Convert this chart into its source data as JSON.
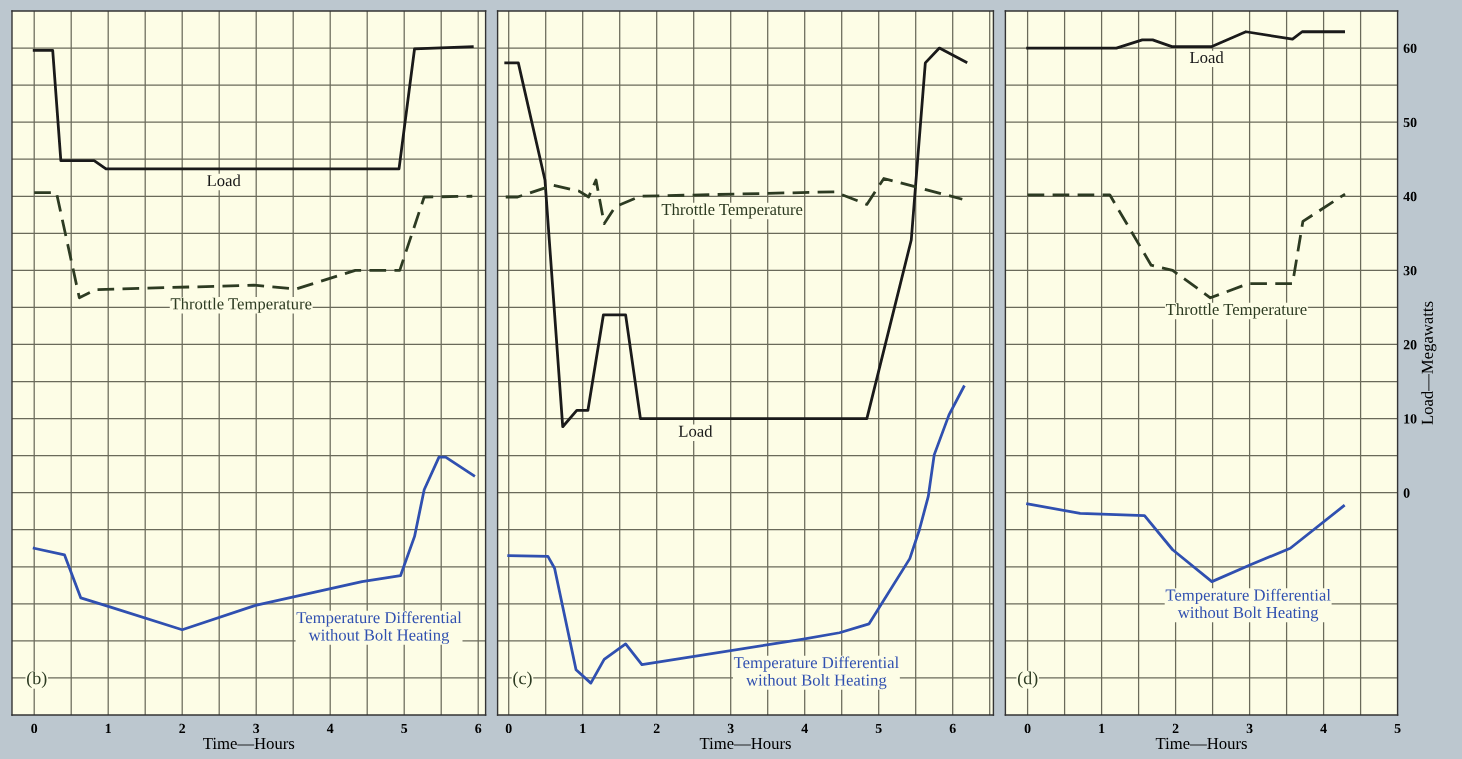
{
  "chart_data": [
    {
      "type": "line",
      "xlabel": "Time—Hours",
      "xlim": [
        -0.3,
        6.1
      ],
      "ylim": [
        -30,
        65
      ],
      "xticks": [
        0,
        {
          "value": 0.5,
          "label": null
        },
        1,
        {
          "value": 1.5,
          "label": null
        },
        2,
        {
          "value": 2.5,
          "label": null
        },
        3,
        {
          "value": 3.5,
          "label": null
        },
        4,
        {
          "value": 4.5,
          "label": null
        },
        5,
        {
          "value": 5.5,
          "label": null
        },
        6
      ],
      "yticks": [
        {
          "value": -25,
          "label": null
        },
        {
          "value": -20,
          "label": null
        },
        {
          "value": -15,
          "label": null
        },
        {
          "value": -10,
          "label": null
        },
        {
          "value": -5,
          "label": null
        },
        0,
        {
          "value": 5,
          "label": null
        },
        10,
        {
          "value": 15,
          "label": null
        },
        20,
        {
          "value": 25,
          "label": null
        },
        30,
        {
          "value": 35,
          "label": null
        },
        40,
        {
          "value": 45,
          "label": null
        },
        50,
        {
          "value": 55,
          "label": null
        },
        60
      ],
      "tick_labels": "x",
      "grid": true,
      "series": [
        {
          "name": "Load",
          "color": "#1a1a1a",
          "line_style": "solid",
          "x": [
            0,
            0.25,
            0.36,
            0.81,
            0.97,
            4.93,
            5.14,
            5.92
          ],
          "values": [
            59.7,
            59.7,
            44.8,
            44.8,
            43.7,
            43.7,
            59.9,
            60.2
          ]
        },
        {
          "name": "Throttle Temperature",
          "color": "#2d3b22",
          "line_style": "dashed",
          "x": [
            0,
            0.3,
            0.61,
            0.83,
            2.97,
            3.54,
            4.34,
            4.94,
            5.27,
            5.92
          ],
          "values": [
            40.5,
            40.5,
            26.3,
            27.4,
            28.0,
            27.5,
            30.0,
            30.0,
            39.9,
            40.0
          ]
        },
        {
          "name": "Temperature Differential\nwithout Bolt Heating",
          "color": "#3050b0",
          "line_style": "solid",
          "x": [
            0,
            0.41,
            0.63,
            0.99,
            2.0,
            2.99,
            4.43,
            4.95,
            5.14,
            5.27,
            5.47,
            5.56,
            5.94
          ],
          "values": [
            -7.5,
            -8.4,
            -14.2,
            -15.3,
            -18.5,
            -15.2,
            -12.0,
            -11.2,
            -5.9,
            0.4,
            4.8,
            4.8,
            2.3
          ]
        }
      ],
      "annotations": [
        "(b)"
      ]
    },
    {
      "type": "line",
      "xlabel": "Time—Hours",
      "xlim": [
        -0.15,
        6.55
      ],
      "ylim": [
        -30,
        65
      ],
      "xticks": [
        0,
        {
          "value": 0.5,
          "label": null
        },
        1,
        {
          "value": 1.5,
          "label": null
        },
        2,
        {
          "value": 2.5,
          "label": null
        },
        3,
        {
          "value": 3.5,
          "label": null
        },
        4,
        {
          "value": 4.5,
          "label": null
        },
        5,
        {
          "value": 5.5,
          "label": null
        },
        6,
        {
          "value": 6.5,
          "label": null
        }
      ],
      "yticks": [
        {
          "value": -25,
          "label": null
        },
        {
          "value": -20,
          "label": null
        },
        {
          "value": -15,
          "label": null
        },
        {
          "value": -10,
          "label": null
        },
        {
          "value": -5,
          "label": null
        },
        0,
        {
          "value": 5,
          "label": null
        },
        10,
        {
          "value": 15,
          "label": null
        },
        20,
        {
          "value": 25,
          "label": null
        },
        30,
        {
          "value": 35,
          "label": null
        },
        40,
        {
          "value": 45,
          "label": null
        },
        50,
        {
          "value": 55,
          "label": null
        },
        60
      ],
      "tick_labels": "x",
      "grid": true,
      "series": [
        {
          "name": "Load",
          "color": "#1a1a1a",
          "line_style": "solid",
          "x": [
            -0.04,
            0.13,
            0.49,
            0.73,
            0.92,
            1.07,
            1.28,
            1.58,
            1.78,
            4.84,
            5.44,
            5.63,
            5.82,
            6.18
          ],
          "values": [
            58.0,
            58.0,
            42.2,
            8.9,
            11.1,
            11.1,
            24.0,
            24.0,
            10.0,
            10.0,
            34.1,
            58.0,
            60.0,
            58.1
          ]
        },
        {
          "name": "Throttle Temperature",
          "color": "#2d3b22",
          "line_style": "dashed",
          "x": [
            -0.04,
            0.12,
            0.6,
            0.95,
            1.08,
            1.18,
            1.29,
            1.44,
            1.78,
            4.4,
            4.84,
            5.07,
            6.13
          ],
          "values": [
            39.9,
            39.9,
            41.5,
            40.7,
            39.9,
            42.2,
            36.3,
            38.6,
            40.0,
            40.6,
            38.9,
            42.4,
            39.6
          ]
        },
        {
          "name": "Temperature Differential\nwithout Bolt Heating",
          "color": "#3050b0",
          "line_style": "solid",
          "x": [
            0,
            0.53,
            0.62,
            0.91,
            1.11,
            1.29,
            1.58,
            1.8,
            3.96,
            4.47,
            4.87,
            5.42,
            5.55,
            5.67,
            5.75,
            5.95,
            6.15
          ],
          "values": [
            -8.5,
            -8.6,
            -10.2,
            -23.9,
            -25.7,
            -22.5,
            -20.4,
            -23.2,
            -19.8,
            -18.9,
            -17.7,
            -8.9,
            -5.0,
            -0.5,
            5.1,
            10.5,
            14.3
          ]
        }
      ],
      "annotations": [
        "(c)"
      ]
    },
    {
      "type": "line",
      "xlabel": "Time—Hours",
      "ylabel": "Load—Megawatts",
      "xlim": [
        -0.3,
        5
      ],
      "ylim": [
        -30,
        65
      ],
      "xticks": [
        0,
        {
          "value": 0.5,
          "label": null
        },
        1,
        {
          "value": 1.5,
          "label": null
        },
        2,
        {
          "value": 2.5,
          "label": null
        },
        3,
        {
          "value": 3.5,
          "label": null
        },
        4,
        {
          "value": 4.5,
          "label": null
        },
        5
      ],
      "yticks": [
        {
          "value": -25,
          "label": null
        },
        {
          "value": -20,
          "label": null
        },
        {
          "value": -15,
          "label": null
        },
        {
          "value": -10,
          "label": null
        },
        {
          "value": -5,
          "label": null
        },
        0,
        {
          "value": 5,
          "label": null
        },
        10,
        {
          "value": 15,
          "label": null
        },
        20,
        {
          "value": 25,
          "label": null
        },
        30,
        {
          "value": 35,
          "label": null
        },
        40,
        {
          "value": 45,
          "label": null
        },
        50,
        {
          "value": 55,
          "label": null
        },
        60
      ],
      "grid": true,
      "series": [
        {
          "name": "Load",
          "color": "#1a1a1a",
          "line_style": "solid",
          "x": [
            0,
            1.2,
            1.55,
            1.69,
            1.95,
            2.49,
            2.95,
            3.58,
            3.71,
            4.27
          ],
          "values": [
            60.0,
            60.0,
            61.1,
            61.1,
            60.2,
            60.2,
            62.2,
            61.2,
            62.2,
            62.2
          ]
        },
        {
          "name": "Throttle Temperature",
          "color": "#2d3b22",
          "line_style": "dashed",
          "x": [
            0,
            1.11,
            1.67,
            1.96,
            2.47,
            2.98,
            3.58,
            3.72,
            4.29
          ],
          "values": [
            40.2,
            40.2,
            30.7,
            30.0,
            26.3,
            28.2,
            28.2,
            36.6,
            40.3
          ]
        },
        {
          "name": "Temperature Differential\nwithout Bolt Heating",
          "color": "#3050b0",
          "line_style": "solid",
          "x": [
            0,
            0.71,
            1.58,
            1.96,
            2.49,
            3.02,
            3.55,
            4.27
          ],
          "values": [
            -1.5,
            -2.8,
            -3.1,
            -7.7,
            -12.0,
            -9.7,
            -7.5,
            -1.8
          ]
        }
      ],
      "annotations": [
        "(d)"
      ]
    }
  ]
}
